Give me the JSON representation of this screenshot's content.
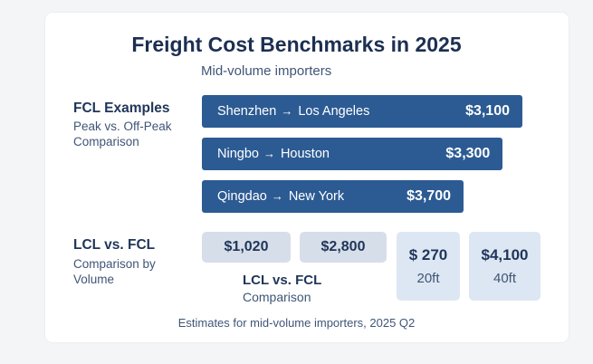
{
  "chart_data": {
    "type": "bar",
    "title": "Freight Cost Benchmarks in 2025",
    "subtitle": "Mid-volume importers",
    "fcl": {
      "heading": "FCL Examples",
      "subheading": "Peak vs. Off-Peak Comparison",
      "routes": [
        {
          "origin": "Shenzhen",
          "destination": "Los Angeles",
          "value": 3100,
          "label": "$3,100"
        },
        {
          "origin": "Ningbo",
          "destination": "Houston",
          "value": 3300,
          "label": "$3,300"
        },
        {
          "origin": "Qingdao",
          "destination": "New York",
          "value": 3700,
          "label": "$3,700"
        }
      ]
    },
    "lcl": {
      "heading": "LCL vs. FCL",
      "subheading": "Comparison by Volume",
      "chips": [
        "$1,020",
        "$2,800"
      ],
      "chips_caption": "LCL vs. FCL",
      "chips_caption_sub": "Comparison",
      "tiles": [
        {
          "value": "$ 270",
          "label": "20ft"
        },
        {
          "value": "$4,100",
          "label": "40ft"
        }
      ]
    },
    "footnote": "Estimates for mid-volume importers, 2025 Q2",
    "colors": {
      "bar": "#2c5b93",
      "chip": "#d6dee9",
      "tile": "#dde7f3"
    },
    "arrow_icon": "arrow-right-icon"
  }
}
